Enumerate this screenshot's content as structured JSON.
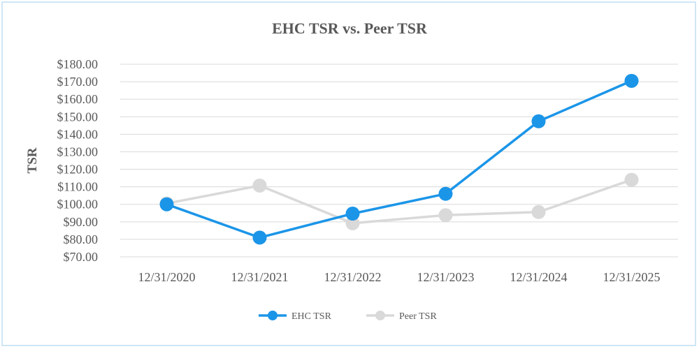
{
  "chart_data": {
    "type": "line",
    "title": "EHC TSR vs. Peer TSR",
    "xlabel": "",
    "ylabel": "TSR",
    "categories": [
      "12/31/2020",
      "12/31/2021",
      "12/31/2022",
      "12/31/2023",
      "12/31/2024",
      "12/31/2025"
    ],
    "ylim": [
      70,
      180
    ],
    "yticks": [
      180,
      170,
      160,
      150,
      140,
      130,
      120,
      110,
      100,
      90,
      80,
      70
    ],
    "ytick_labels": [
      "$180.00",
      "$170.00",
      "$160.00",
      "$150.00",
      "$140.00",
      "$130.00",
      "$120.00",
      "$110.00",
      "$100.00",
      "$90.00",
      "$80.00",
      "$70.00"
    ],
    "grid": true,
    "legend_position": "bottom",
    "series": [
      {
        "name": "EHC TSR",
        "color": "#1b95e8",
        "values": [
          100.0,
          81.0,
          94.7,
          106.0,
          147.4,
          170.5
        ]
      },
      {
        "name": "Peer TSR",
        "color": "#d9d9d9",
        "values": [
          100.5,
          110.7,
          89.2,
          93.8,
          95.6,
          114.0
        ]
      }
    ]
  }
}
